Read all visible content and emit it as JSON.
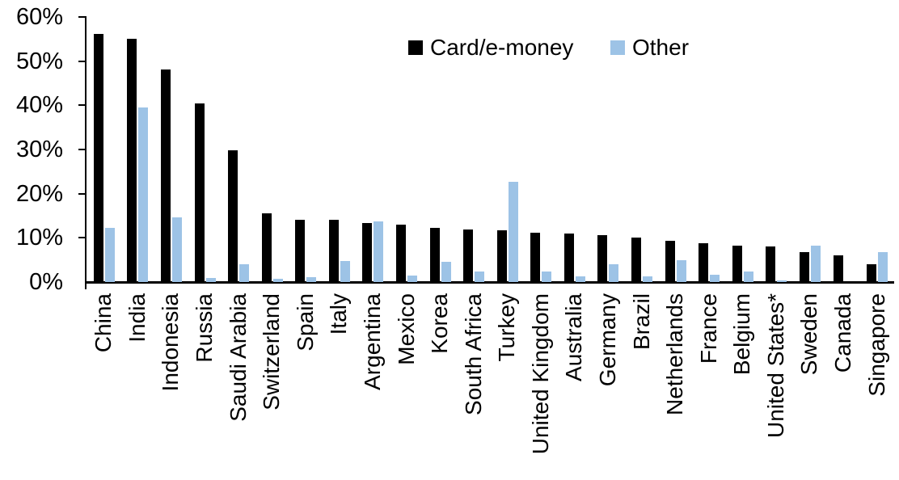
{
  "chart_data": {
    "type": "bar",
    "title": "",
    "xlabel": "",
    "ylabel": "",
    "ylim": [
      0,
      60
    ],
    "ytick_step": 10,
    "ytick_labels": [
      "0%",
      "10%",
      "20%",
      "30%",
      "40%",
      "50%",
      "60%"
    ],
    "grid": false,
    "legend_position": "top-center",
    "xlabel_rotation_degrees": -90,
    "categories": [
      "China",
      "India",
      "Indonesia",
      "Russia",
      "Saudi Arabia",
      "Switzerland",
      "Spain",
      "Italy",
      "Argentina",
      "Mexico",
      "Korea",
      "South Africa",
      "Turkey",
      "United Kingdom",
      "Australia",
      "Germany",
      "Brazil",
      "Netherlands",
      "France",
      "Belgium",
      "United States*",
      "Sweden",
      "Canada",
      "Singapore"
    ],
    "series": [
      {
        "name": "Card/e-money",
        "color": "#000000",
        "values": [
          56.2,
          55.0,
          48.2,
          40.4,
          29.8,
          15.6,
          14.1,
          14.0,
          13.4,
          12.9,
          12.2,
          11.8,
          11.7,
          11.2,
          10.9,
          10.6,
          10.0,
          9.4,
          8.8,
          8.3,
          8.0,
          6.7,
          6.0,
          4.0
        ]
      },
      {
        "name": "Other",
        "color": "#9DC3E6",
        "values": [
          12.3,
          39.6,
          14.6,
          1.0,
          4.0,
          0.8,
          1.1,
          4.7,
          13.8,
          1.5,
          4.6,
          2.4,
          22.6,
          2.4,
          1.2,
          4.0,
          1.3,
          4.9,
          1.6,
          2.3,
          0.4,
          8.2,
          0.0,
          6.8
        ]
      }
    ]
  }
}
